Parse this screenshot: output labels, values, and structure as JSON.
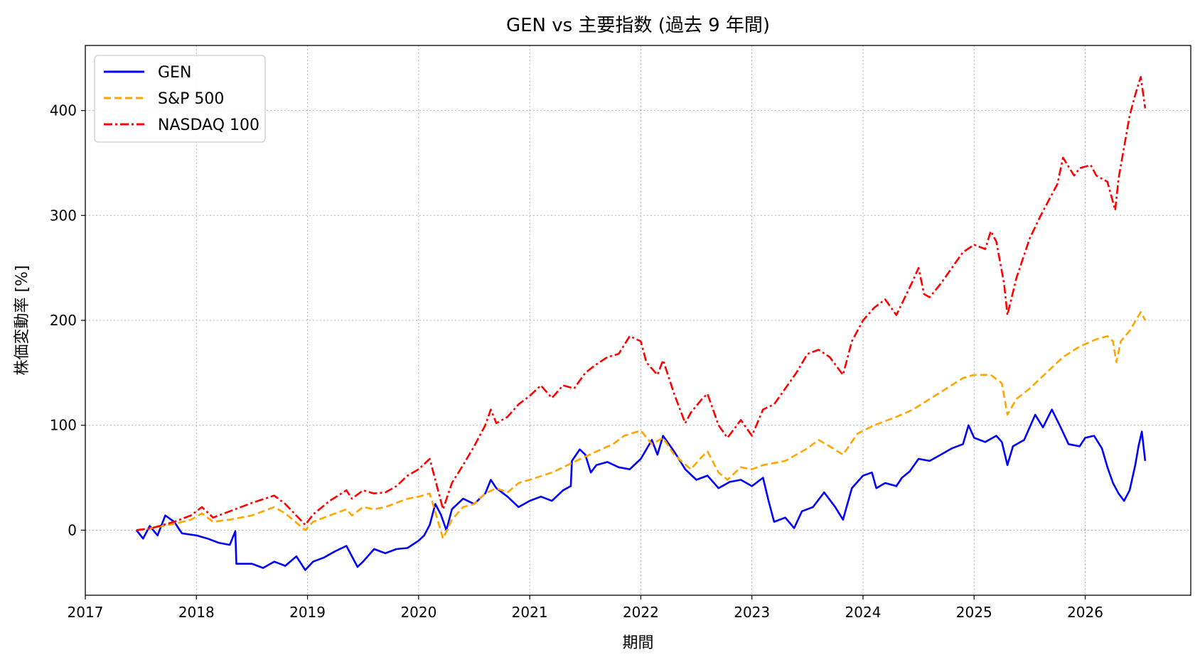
{
  "chart_data": {
    "type": "line",
    "title": "GEN vs 主要指数 (過去 9 年間)",
    "xlabel": "期間",
    "ylabel": "株価変動率 [%]",
    "x_ticks": [
      "2017",
      "2018",
      "2019",
      "2020",
      "2021",
      "2022",
      "2023",
      "2024",
      "2025",
      "2026"
    ],
    "y_ticks": [
      0,
      100,
      200,
      300,
      400
    ],
    "xlim": [
      2017.0,
      2026.95
    ],
    "ylim": [
      -62,
      462
    ],
    "grid": true,
    "legend_position": "top-left",
    "series": [
      {
        "name": "GEN",
        "color": "#0000ff",
        "dash": "solid",
        "points": [
          [
            2017.46,
            0
          ],
          [
            2017.52,
            -8
          ],
          [
            2017.58,
            4
          ],
          [
            2017.65,
            -5
          ],
          [
            2017.72,
            14
          ],
          [
            2017.8,
            8
          ],
          [
            2017.87,
            -3
          ],
          [
            2018.0,
            -5
          ],
          [
            2018.1,
            -8
          ],
          [
            2018.2,
            -12
          ],
          [
            2018.3,
            -14
          ],
          [
            2018.35,
            -1
          ],
          [
            2018.36,
            -32
          ],
          [
            2018.5,
            -32
          ],
          [
            2018.6,
            -36
          ],
          [
            2018.7,
            -30
          ],
          [
            2018.8,
            -34
          ],
          [
            2018.9,
            -25
          ],
          [
            2018.98,
            -38
          ],
          [
            2019.05,
            -30
          ],
          [
            2019.15,
            -26
          ],
          [
            2019.25,
            -20
          ],
          [
            2019.35,
            -15
          ],
          [
            2019.45,
            -35
          ],
          [
            2019.5,
            -30
          ],
          [
            2019.6,
            -18
          ],
          [
            2019.7,
            -22
          ],
          [
            2019.8,
            -18
          ],
          [
            2019.9,
            -17
          ],
          [
            2020.0,
            -10
          ],
          [
            2020.05,
            -5
          ],
          [
            2020.1,
            5
          ],
          [
            2020.15,
            25
          ],
          [
            2020.2,
            15
          ],
          [
            2020.25,
            0
          ],
          [
            2020.3,
            20
          ],
          [
            2020.4,
            30
          ],
          [
            2020.5,
            25
          ],
          [
            2020.6,
            35
          ],
          [
            2020.65,
            48
          ],
          [
            2020.7,
            40
          ],
          [
            2020.8,
            32
          ],
          [
            2020.9,
            22
          ],
          [
            2021.0,
            28
          ],
          [
            2021.1,
            32
          ],
          [
            2021.2,
            28
          ],
          [
            2021.3,
            38
          ],
          [
            2021.37,
            42
          ],
          [
            2021.38,
            66
          ],
          [
            2021.45,
            77
          ],
          [
            2021.5,
            72
          ],
          [
            2021.55,
            55
          ],
          [
            2021.6,
            62
          ],
          [
            2021.7,
            65
          ],
          [
            2021.8,
            60
          ],
          [
            2021.9,
            58
          ],
          [
            2022.0,
            68
          ],
          [
            2022.1,
            86
          ],
          [
            2022.15,
            72
          ],
          [
            2022.2,
            90
          ],
          [
            2022.3,
            75
          ],
          [
            2022.4,
            58
          ],
          [
            2022.5,
            48
          ],
          [
            2022.6,
            52
          ],
          [
            2022.7,
            40
          ],
          [
            2022.8,
            46
          ],
          [
            2022.9,
            48
          ],
          [
            2023.0,
            42
          ],
          [
            2023.1,
            50
          ],
          [
            2023.15,
            28
          ],
          [
            2023.2,
            8
          ],
          [
            2023.3,
            12
          ],
          [
            2023.38,
            2
          ],
          [
            2023.45,
            18
          ],
          [
            2023.55,
            22
          ],
          [
            2023.65,
            36
          ],
          [
            2023.75,
            22
          ],
          [
            2023.82,
            10
          ],
          [
            2023.9,
            40
          ],
          [
            2024.0,
            52
          ],
          [
            2024.08,
            55
          ],
          [
            2024.12,
            40
          ],
          [
            2024.2,
            45
          ],
          [
            2024.3,
            42
          ],
          [
            2024.35,
            50
          ],
          [
            2024.42,
            56
          ],
          [
            2024.5,
            68
          ],
          [
            2024.6,
            66
          ],
          [
            2024.7,
            72
          ],
          [
            2024.8,
            78
          ],
          [
            2024.9,
            82
          ],
          [
            2024.95,
            100
          ],
          [
            2025.0,
            88
          ],
          [
            2025.1,
            84
          ],
          [
            2025.2,
            90
          ],
          [
            2025.25,
            84
          ],
          [
            2025.3,
            62
          ],
          [
            2025.35,
            80
          ],
          [
            2025.45,
            86
          ],
          [
            2025.55,
            110
          ],
          [
            2025.62,
            98
          ],
          [
            2025.7,
            115
          ],
          [
            2025.77,
            100
          ],
          [
            2025.85,
            82
          ],
          [
            2025.95,
            80
          ],
          [
            2026.0,
            88
          ],
          [
            2026.08,
            90
          ],
          [
            2026.15,
            78
          ],
          [
            2026.2,
            60
          ],
          [
            2026.25,
            45
          ],
          [
            2026.3,
            35
          ],
          [
            2026.35,
            28
          ],
          [
            2026.4,
            38
          ],
          [
            2026.45,
            62
          ],
          [
            2026.48,
            80
          ],
          [
            2026.51,
            94
          ],
          [
            2026.54,
            66
          ]
        ]
      },
      {
        "name": "S&P 500",
        "color": "#ffa500",
        "dash": "10,5",
        "points": [
          [
            2017.46,
            0
          ],
          [
            2017.6,
            2
          ],
          [
            2017.8,
            6
          ],
          [
            2017.95,
            10
          ],
          [
            2018.05,
            16
          ],
          [
            2018.15,
            8
          ],
          [
            2018.3,
            10
          ],
          [
            2018.5,
            14
          ],
          [
            2018.7,
            22
          ],
          [
            2018.8,
            16
          ],
          [
            2018.98,
            0
          ],
          [
            2019.05,
            8
          ],
          [
            2019.2,
            14
          ],
          [
            2019.35,
            20
          ],
          [
            2019.4,
            14
          ],
          [
            2019.5,
            22
          ],
          [
            2019.6,
            20
          ],
          [
            2019.7,
            22
          ],
          [
            2019.8,
            26
          ],
          [
            2019.9,
            30
          ],
          [
            2020.0,
            32
          ],
          [
            2020.1,
            35
          ],
          [
            2020.17,
            10
          ],
          [
            2020.22,
            -8
          ],
          [
            2020.3,
            10
          ],
          [
            2020.4,
            22
          ],
          [
            2020.5,
            25
          ],
          [
            2020.6,
            35
          ],
          [
            2020.7,
            40
          ],
          [
            2020.8,
            36
          ],
          [
            2020.9,
            45
          ],
          [
            2021.0,
            48
          ],
          [
            2021.2,
            55
          ],
          [
            2021.4,
            65
          ],
          [
            2021.6,
            75
          ],
          [
            2021.75,
            82
          ],
          [
            2021.85,
            90
          ],
          [
            2022.0,
            95
          ],
          [
            2022.1,
            82
          ],
          [
            2022.2,
            88
          ],
          [
            2022.3,
            72
          ],
          [
            2022.45,
            58
          ],
          [
            2022.55,
            70
          ],
          [
            2022.6,
            75
          ],
          [
            2022.7,
            55
          ],
          [
            2022.78,
            48
          ],
          [
            2022.9,
            60
          ],
          [
            2023.0,
            58
          ],
          [
            2023.1,
            62
          ],
          [
            2023.3,
            66
          ],
          [
            2023.5,
            78
          ],
          [
            2023.6,
            86
          ],
          [
            2023.7,
            80
          ],
          [
            2023.82,
            72
          ],
          [
            2023.95,
            92
          ],
          [
            2024.1,
            100
          ],
          [
            2024.3,
            108
          ],
          [
            2024.45,
            115
          ],
          [
            2024.6,
            125
          ],
          [
            2024.75,
            135
          ],
          [
            2024.9,
            145
          ],
          [
            2025.0,
            148
          ],
          [
            2025.15,
            148
          ],
          [
            2025.25,
            140
          ],
          [
            2025.3,
            110
          ],
          [
            2025.38,
            125
          ],
          [
            2025.5,
            135
          ],
          [
            2025.65,
            150
          ],
          [
            2025.8,
            165
          ],
          [
            2025.95,
            175
          ],
          [
            2026.1,
            182
          ],
          [
            2026.2,
            185
          ],
          [
            2026.25,
            180
          ],
          [
            2026.28,
            160
          ],
          [
            2026.32,
            180
          ],
          [
            2026.4,
            190
          ],
          [
            2026.5,
            208
          ],
          [
            2026.54,
            200
          ]
        ]
      },
      {
        "name": "NASDAQ 100",
        "color": "#ff0000",
        "dash": "12,4,3,4",
        "points": [
          [
            2017.46,
            0
          ],
          [
            2017.6,
            2
          ],
          [
            2017.8,
            8
          ],
          [
            2017.95,
            14
          ],
          [
            2018.05,
            22
          ],
          [
            2018.15,
            12
          ],
          [
            2018.3,
            18
          ],
          [
            2018.5,
            26
          ],
          [
            2018.7,
            33
          ],
          [
            2018.8,
            25
          ],
          [
            2018.98,
            5
          ],
          [
            2019.05,
            15
          ],
          [
            2019.2,
            28
          ],
          [
            2019.35,
            38
          ],
          [
            2019.4,
            30
          ],
          [
            2019.5,
            38
          ],
          [
            2019.6,
            35
          ],
          [
            2019.7,
            36
          ],
          [
            2019.8,
            42
          ],
          [
            2019.9,
            52
          ],
          [
            2020.0,
            58
          ],
          [
            2020.1,
            68
          ],
          [
            2020.17,
            40
          ],
          [
            2020.22,
            20
          ],
          [
            2020.3,
            45
          ],
          [
            2020.4,
            62
          ],
          [
            2020.5,
            80
          ],
          [
            2020.6,
            100
          ],
          [
            2020.65,
            115
          ],
          [
            2020.7,
            102
          ],
          [
            2020.8,
            108
          ],
          [
            2020.9,
            120
          ],
          [
            2021.0,
            128
          ],
          [
            2021.1,
            138
          ],
          [
            2021.2,
            126
          ],
          [
            2021.3,
            138
          ],
          [
            2021.4,
            135
          ],
          [
            2021.5,
            150
          ],
          [
            2021.6,
            158
          ],
          [
            2021.7,
            165
          ],
          [
            2021.8,
            168
          ],
          [
            2021.9,
            185
          ],
          [
            2022.0,
            180
          ],
          [
            2022.05,
            160
          ],
          [
            2022.15,
            148
          ],
          [
            2022.2,
            162
          ],
          [
            2022.3,
            130
          ],
          [
            2022.4,
            102
          ],
          [
            2022.45,
            112
          ],
          [
            2022.55,
            125
          ],
          [
            2022.6,
            130
          ],
          [
            2022.7,
            100
          ],
          [
            2022.78,
            88
          ],
          [
            2022.9,
            105
          ],
          [
            2023.0,
            90
          ],
          [
            2023.1,
            115
          ],
          [
            2023.2,
            120
          ],
          [
            2023.3,
            135
          ],
          [
            2023.4,
            150
          ],
          [
            2023.5,
            168
          ],
          [
            2023.6,
            172
          ],
          [
            2023.7,
            165
          ],
          [
            2023.82,
            148
          ],
          [
            2023.9,
            180
          ],
          [
            2024.0,
            200
          ],
          [
            2024.1,
            212
          ],
          [
            2024.2,
            220
          ],
          [
            2024.3,
            205
          ],
          [
            2024.45,
            238
          ],
          [
            2024.5,
            250
          ],
          [
            2024.55,
            225
          ],
          [
            2024.6,
            222
          ],
          [
            2024.7,
            235
          ],
          [
            2024.8,
            250
          ],
          [
            2024.9,
            265
          ],
          [
            2025.0,
            272
          ],
          [
            2025.1,
            268
          ],
          [
            2025.15,
            285
          ],
          [
            2025.2,
            275
          ],
          [
            2025.27,
            235
          ],
          [
            2025.3,
            205
          ],
          [
            2025.38,
            240
          ],
          [
            2025.5,
            278
          ],
          [
            2025.6,
            300
          ],
          [
            2025.7,
            320
          ],
          [
            2025.75,
            330
          ],
          [
            2025.8,
            355
          ],
          [
            2025.9,
            338
          ],
          [
            2025.95,
            345
          ],
          [
            2026.05,
            348
          ],
          [
            2026.1,
            338
          ],
          [
            2026.2,
            332
          ],
          [
            2026.27,
            305
          ],
          [
            2026.3,
            335
          ],
          [
            2026.35,
            365
          ],
          [
            2026.4,
            395
          ],
          [
            2026.45,
            415
          ],
          [
            2026.5,
            432
          ],
          [
            2026.54,
            402
          ]
        ]
      }
    ]
  }
}
